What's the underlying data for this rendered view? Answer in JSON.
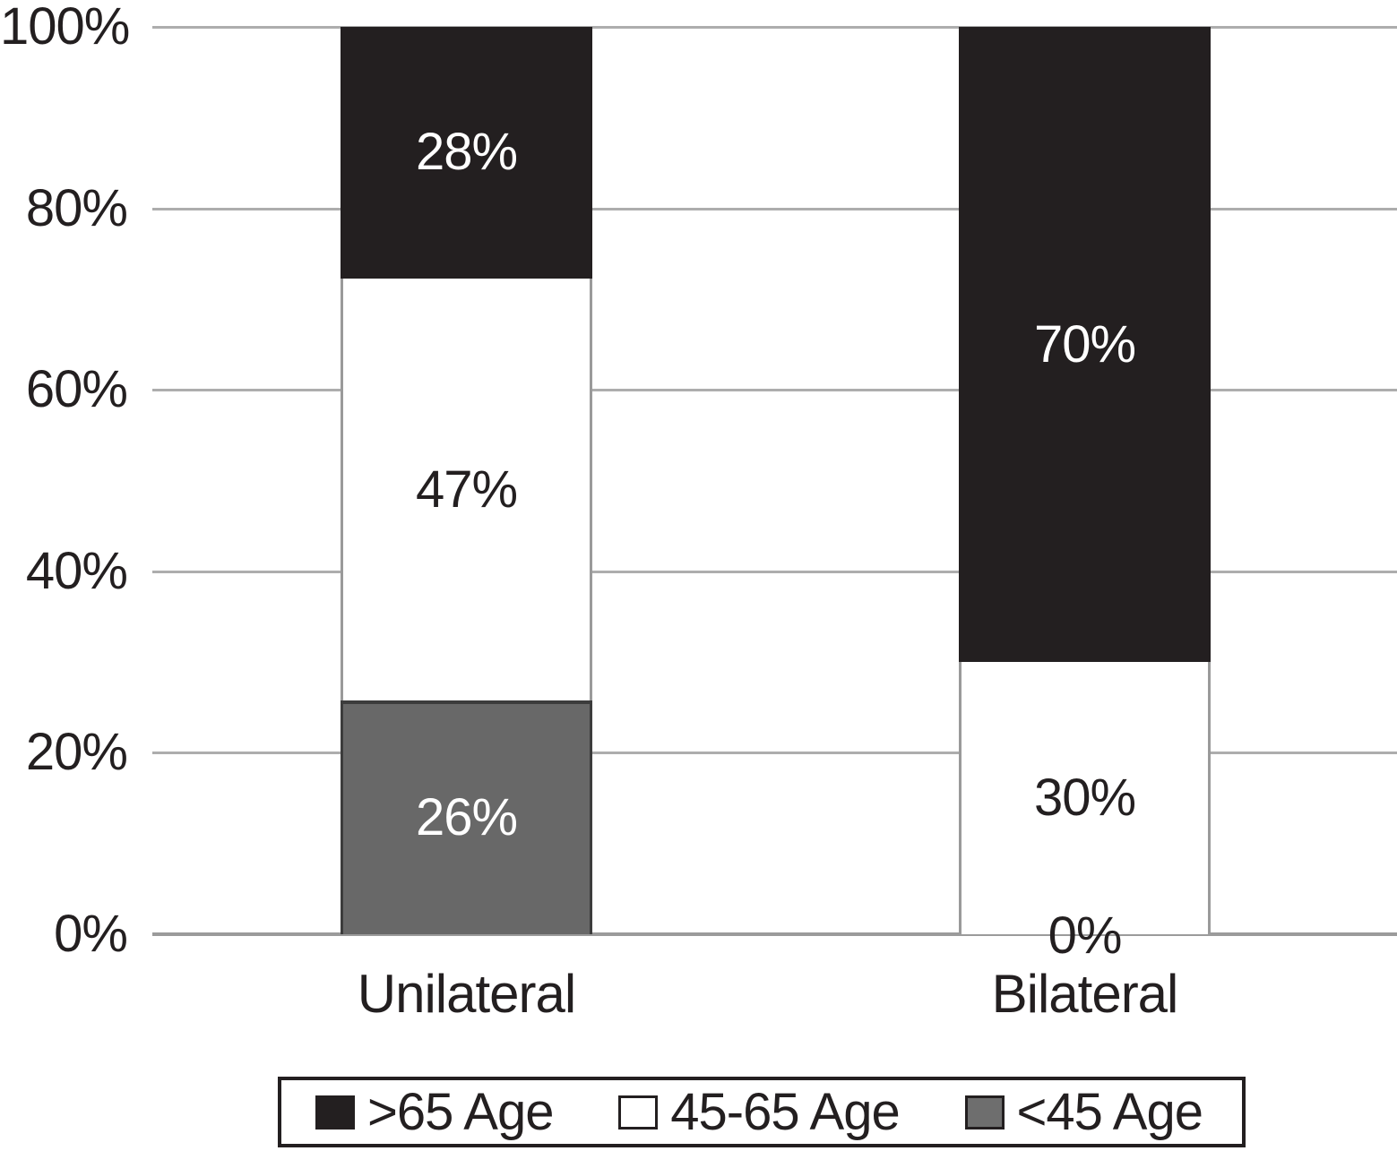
{
  "chart_data": {
    "type": "bar",
    "variant": "stacked-percentage-column",
    "title": "",
    "categories": [
      "Unilateral",
      "Bilateral"
    ],
    "series": [
      {
        "name": "<45 Age",
        "fill": "#686868",
        "border": "#3c3c3c",
        "label_color": "#ffffff",
        "values": [
          26,
          0
        ]
      },
      {
        "name": "45-65 Age",
        "fill": "#ffffff",
        "border": "#9a9a9a",
        "label_color": "#231f20",
        "values": [
          47,
          30
        ]
      },
      {
        "name": ">65 Age",
        "fill": "#231f20",
        "border": "#231f20",
        "label_color": "#ffffff",
        "values": [
          28,
          70
        ]
      }
    ],
    "value_suffix": "%",
    "ylim": [
      0,
      100
    ],
    "yticks": [
      0,
      20,
      40,
      60,
      80,
      100
    ],
    "ytick_labels": [
      "0%",
      "20%",
      "40%",
      "60%",
      "80%",
      "100%"
    ],
    "grid": true,
    "gridline_color": "#adadad",
    "axis_line_color": "#9b9b9b",
    "text_color": "#231f20",
    "legend_position": "bottom",
    "legend_items": [
      {
        "label": ">65 Age",
        "fill": "#231f20",
        "border": "#231f20"
      },
      {
        "label": "45-65 Age",
        "fill": "#ffffff",
        "border": "#231f20"
      },
      {
        "label": "<45 Age",
        "fill": "#6e6e6e",
        "border": "#231f20"
      }
    ]
  }
}
